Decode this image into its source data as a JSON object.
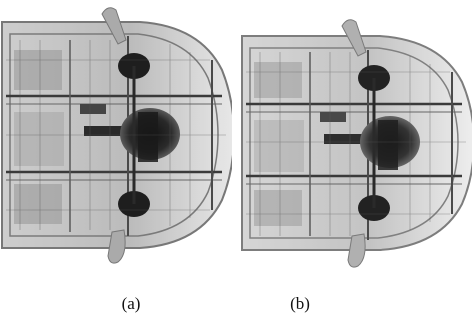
{
  "figure": {
    "panels": [
      {
        "label": "(a)",
        "image": "xray-car-top-view-left"
      },
      {
        "label": "(b)",
        "image": "xray-car-top-view-right"
      }
    ],
    "colors": {
      "background": "#ffffff",
      "xray_dark": "#1a1a1a",
      "xray_mid": "#8a8a8a",
      "xray_light": "#d8d8d8"
    }
  }
}
